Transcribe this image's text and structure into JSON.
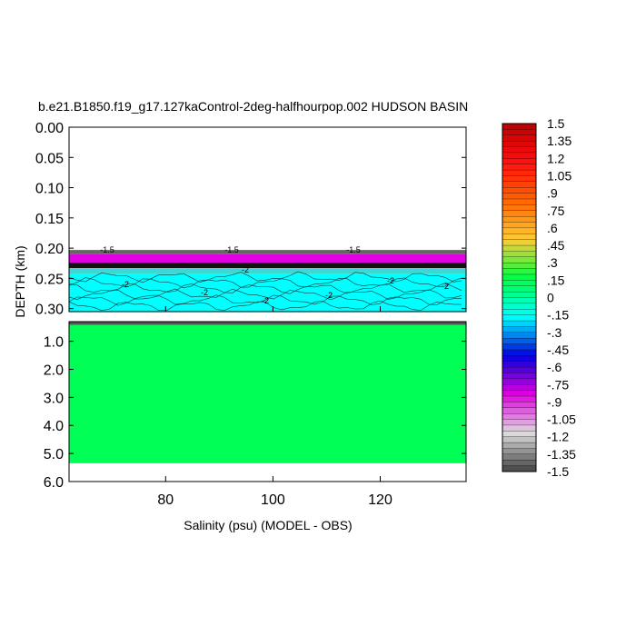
{
  "chart_data": {
    "type": "heatmap",
    "title": "b.e21.B1850.f19_g17.127kaControl-2deg-halfhourpop.002 HUDSON BASIN",
    "xlabel": "Salinity (psu) (MODEL - OBS)",
    "ylabel": "DEPTH (km)",
    "xlim": [
      62,
      136
    ],
    "x_ticks": [
      "80",
      "100",
      "120"
    ],
    "x_tick_values": [
      80,
      100,
      120
    ],
    "upper_panel": {
      "ylim": [
        0.0,
        0.305
      ],
      "y_ticks": [
        "0.00",
        "0.05",
        "0.10",
        "0.15",
        "0.20",
        "0.25",
        "0.30"
      ],
      "y_tick_values": [
        0.0,
        0.05,
        0.1,
        0.15,
        0.2,
        0.25,
        0.3
      ],
      "layers": [
        {
          "top": 0.0,
          "bottom": 0.203,
          "fill": "#ffffff",
          "note": "no data"
        },
        {
          "top": 0.203,
          "bottom": 0.21,
          "fill": "#666666",
          "value_range": [
            -1.5,
            -1.35
          ]
        },
        {
          "top": 0.21,
          "bottom": 0.224,
          "fill": "#e000e0",
          "value_range": [
            -1.35,
            -1.05
          ]
        },
        {
          "top": 0.224,
          "bottom": 0.233,
          "fill": "#111111",
          "value_range": [
            -1.5,
            -1.35
          ]
        },
        {
          "top": 0.233,
          "bottom": 0.243,
          "fill": "#3fd6d6",
          "value_range": [
            -0.3,
            -0.15
          ]
        },
        {
          "top": 0.243,
          "bottom": 0.305,
          "fill": "#00ffff",
          "value_range": [
            -0.15,
            0.0
          ]
        }
      ],
      "contour_labels": [
        "-1.5",
        "-1.5",
        "-1.5",
        "-2",
        "-2",
        "-2",
        "-2",
        "-2",
        "-2",
        "-2"
      ]
    },
    "lower_panel": {
      "ylim": [
        0.3,
        6.0
      ],
      "y_ticks": [
        "1.0",
        "2.0",
        "3.0",
        "4.0",
        "5.0",
        "6.0"
      ],
      "y_tick_values": [
        1.0,
        2.0,
        3.0,
        4.0,
        5.0,
        6.0
      ],
      "layers": [
        {
          "top": 0.3,
          "bottom": 0.42,
          "fill": "#555555",
          "value_range": [
            -1.5,
            -1.35
          ]
        },
        {
          "top": 0.42,
          "bottom": 5.35,
          "fill": "#00ff55",
          "value_range": [
            0.0,
            0.15
          ]
        },
        {
          "top": 5.35,
          "bottom": 6.0,
          "fill": "#ffffff",
          "note": "no data"
        }
      ]
    },
    "colorbar": {
      "labels": [
        "1.5",
        "1.35",
        "1.2",
        "1.05",
        ".9",
        ".75",
        ".6",
        ".45",
        ".3",
        ".15",
        "0",
        "-.15",
        "-.3",
        "-.45",
        "-.6",
        "-.75",
        "-.9",
        "-1.05",
        "-1.2",
        "-1.35",
        "-1.5"
      ],
      "min": -1.5,
      "max": 1.5,
      "step": 0.05,
      "colors": [
        "#bb0000",
        "#ff1010",
        "#ff6600",
        "#ffcc33",
        "#00ff44",
        "#00ffff",
        "#0000dd",
        "#e000e0",
        "#dddddd",
        "#444444"
      ]
    }
  }
}
